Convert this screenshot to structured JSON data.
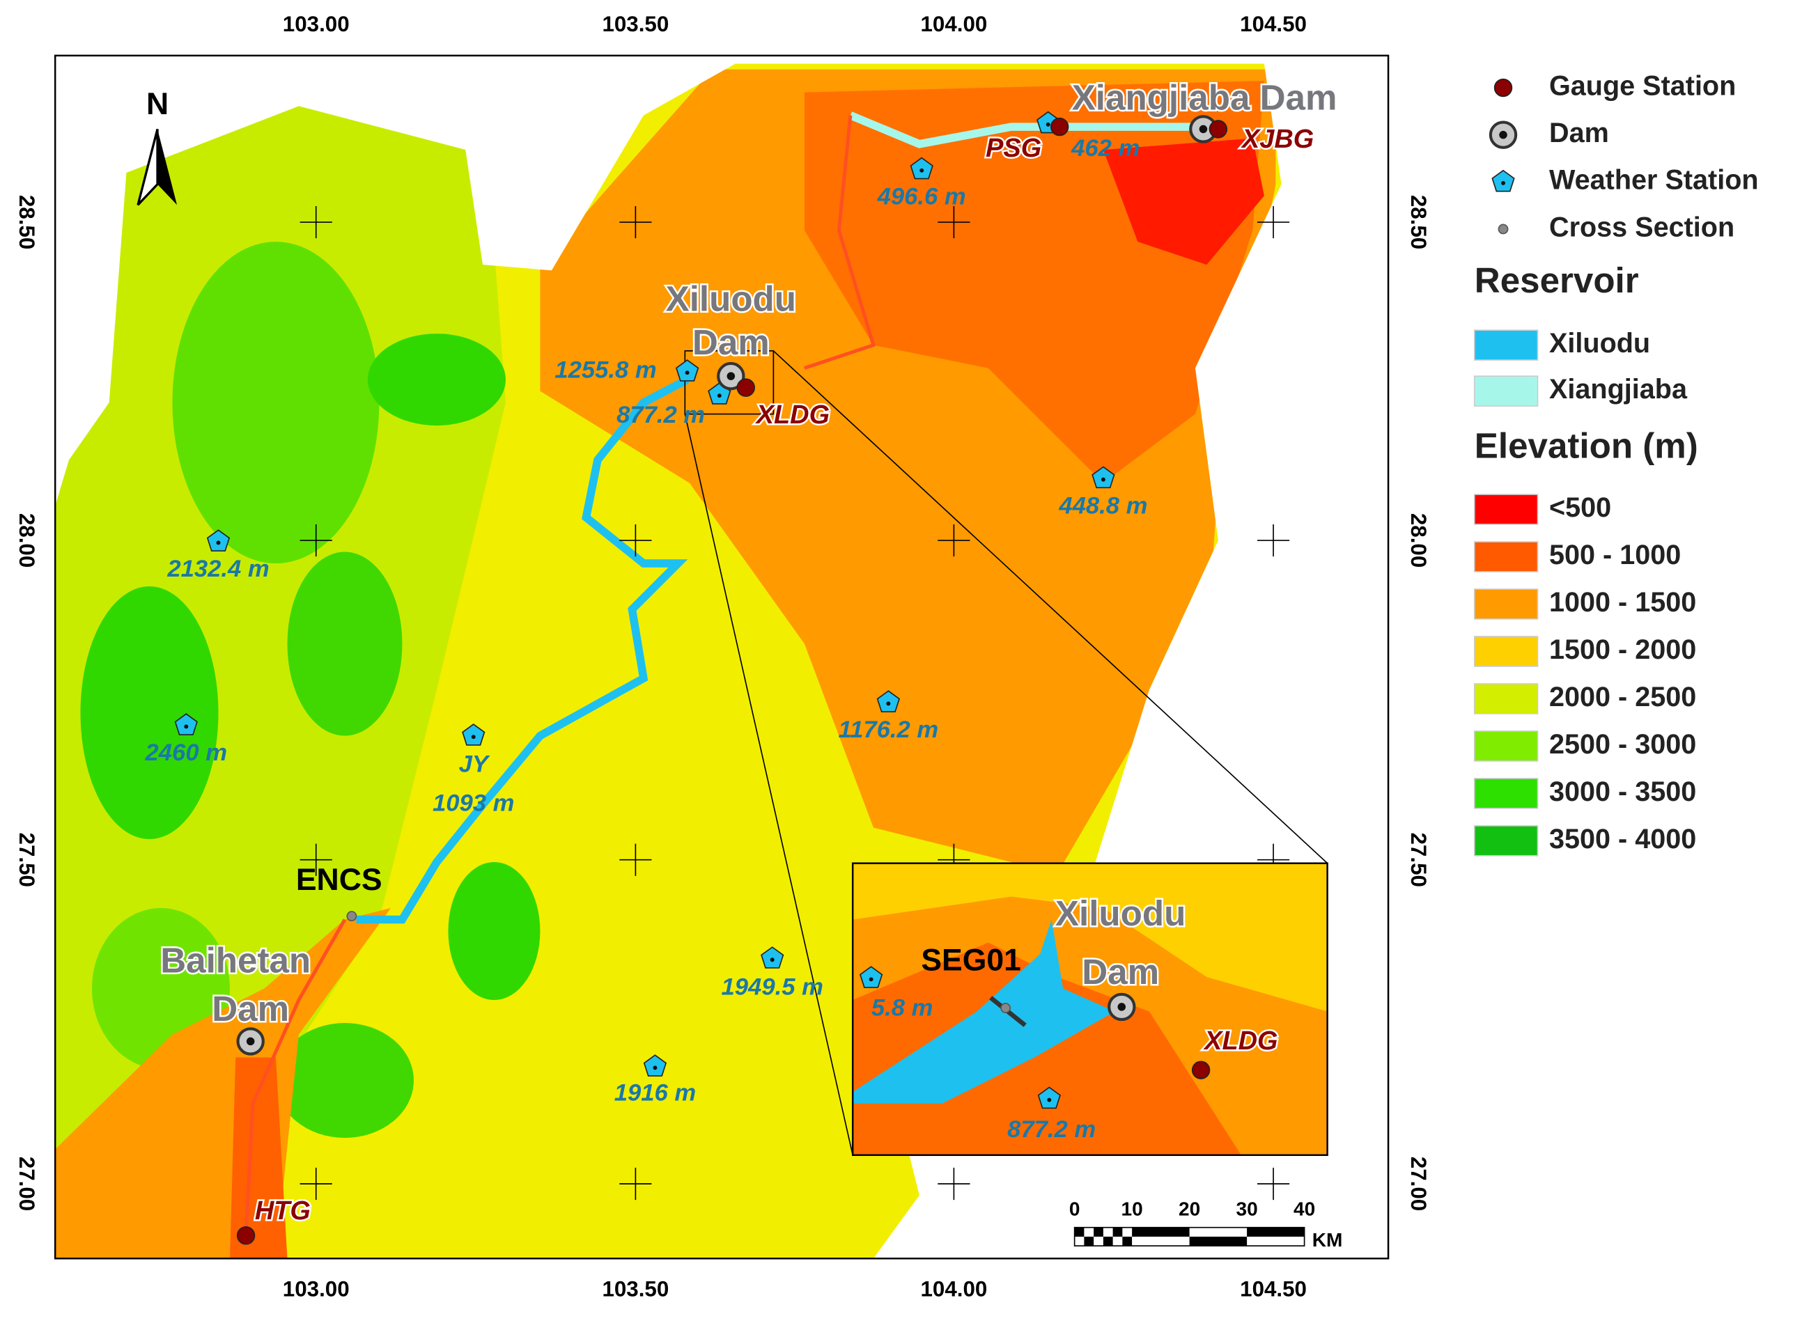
{
  "north": "N",
  "axes": {
    "top": [
      "103.00",
      "103.50",
      "104.00",
      "104.50"
    ],
    "bottom": [
      "103.00",
      "103.50",
      "104.00",
      "104.50"
    ],
    "left": [
      "28.50",
      "28.00",
      "27.50",
      "27.00"
    ],
    "right": [
      "28.50",
      "28.00",
      "27.50",
      "27.00"
    ]
  },
  "dams": [
    "Xiangjiaba Dam",
    "Xiluodu",
    "Dam",
    "Baihetan",
    "Dam"
  ],
  "gauges": [
    "PSG",
    "XJBG",
    "XLDG",
    "HTG"
  ],
  "stations": [
    "496.6 m",
    "462 m",
    "1255.8 m",
    "877.2 m",
    "448.8 m",
    "2132.4 m",
    "2460 m",
    "JY",
    "1093 m",
    "1176.2 m",
    "1949.5 m",
    "5.8 m",
    "1916 m"
  ],
  "cross_section": "ENCS",
  "scale": {
    "ticks": [
      "0",
      "10",
      "20",
      "30",
      "40"
    ],
    "unit": "KM"
  },
  "inset": {
    "section": "SEG01",
    "dam": [
      "Xiluodu",
      "Dam"
    ],
    "gauge": "XLDG",
    "station": "877.2 m"
  },
  "legend": {
    "symbols": [
      "Gauge Station",
      "Dam",
      "Weather Station",
      "Cross Section"
    ],
    "reservoir_title": "Reservoir",
    "reservoirs": [
      {
        "name": "Xiluodu",
        "color": "#1ec0f0"
      },
      {
        "name": "Xiangjiaba",
        "color": "#a6f7ea"
      }
    ],
    "elevation_title": "Elevation (m)",
    "elevation": [
      {
        "name": "<500",
        "color": "#ff0000"
      },
      {
        "name": "500 - 1000",
        "color": "#ff5a00"
      },
      {
        "name": "1000 - 1500",
        "color": "#ff9a00"
      },
      {
        "name": "1500 - 2000",
        "color": "#ffd000"
      },
      {
        "name": "2000 - 2500",
        "color": "#d4ee00"
      },
      {
        "name": "2500 - 3000",
        "color": "#80ec00"
      },
      {
        "name": "3000 - 3500",
        "color": "#2ee000"
      },
      {
        "name": "3500 - 4000",
        "color": "#12c012"
      }
    ]
  }
}
